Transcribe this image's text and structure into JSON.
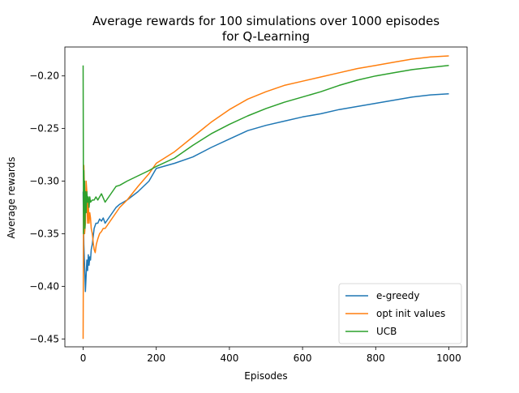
{
  "chart_data": {
    "type": "line",
    "title_line1": "Average rewards for 100 simulations over 1000 episodes",
    "title_line2": "for Q-Learning",
    "xlabel": "Episodes",
    "ylabel": "Average rewards",
    "xlim": [
      -50,
      1050
    ],
    "ylim": [
      -0.4575,
      -0.1725
    ],
    "xticks": [
      0,
      200,
      400,
      600,
      800,
      1000
    ],
    "xtick_labels": [
      "0",
      "200",
      "400",
      "600",
      "800",
      "1000"
    ],
    "yticks": [
      -0.45,
      -0.4,
      -0.35,
      -0.3,
      -0.25,
      -0.2
    ],
    "ytick_labels": [
      "−0.45",
      "−0.40",
      "−0.35",
      "−0.30",
      "−0.25",
      "−0.20"
    ],
    "grid": false,
    "legend_position": "lower-right",
    "series": [
      {
        "name": "e-greedy",
        "color": "#1f77b4",
        "points": [
          [
            0,
            -0.31
          ],
          [
            2,
            -0.36
          ],
          [
            4,
            -0.38
          ],
          [
            6,
            -0.405
          ],
          [
            8,
            -0.39
          ],
          [
            10,
            -0.375
          ],
          [
            12,
            -0.385
          ],
          [
            14,
            -0.37
          ],
          [
            16,
            -0.38
          ],
          [
            18,
            -0.372
          ],
          [
            20,
            -0.375
          ],
          [
            22,
            -0.365
          ],
          [
            25,
            -0.36
          ],
          [
            30,
            -0.345
          ],
          [
            35,
            -0.34
          ],
          [
            40,
            -0.34
          ],
          [
            45,
            -0.336
          ],
          [
            50,
            -0.338
          ],
          [
            55,
            -0.335
          ],
          [
            60,
            -0.34
          ],
          [
            70,
            -0.335
          ],
          [
            80,
            -0.33
          ],
          [
            90,
            -0.325
          ],
          [
            100,
            -0.322
          ],
          [
            120,
            -0.318
          ],
          [
            150,
            -0.31
          ],
          [
            180,
            -0.3
          ],
          [
            200,
            -0.288
          ],
          [
            250,
            -0.283
          ],
          [
            300,
            -0.277
          ],
          [
            350,
            -0.268
          ],
          [
            400,
            -0.26
          ],
          [
            450,
            -0.252
          ],
          [
            500,
            -0.247
          ],
          [
            550,
            -0.243
          ],
          [
            600,
            -0.239
          ],
          [
            650,
            -0.236
          ],
          [
            700,
            -0.232
          ],
          [
            750,
            -0.229
          ],
          [
            800,
            -0.226
          ],
          [
            850,
            -0.223
          ],
          [
            900,
            -0.22
          ],
          [
            950,
            -0.218
          ],
          [
            1000,
            -0.217
          ]
        ]
      },
      {
        "name": "opt init values",
        "color": "#ff7f0e",
        "points": [
          [
            0,
            -0.45
          ],
          [
            1,
            -0.33
          ],
          [
            2,
            -0.285
          ],
          [
            3,
            -0.3
          ],
          [
            4,
            -0.35
          ],
          [
            6,
            -0.34
          ],
          [
            8,
            -0.3
          ],
          [
            10,
            -0.31
          ],
          [
            12,
            -0.34
          ],
          [
            14,
            -0.32
          ],
          [
            16,
            -0.34
          ],
          [
            18,
            -0.33
          ],
          [
            20,
            -0.335
          ],
          [
            22,
            -0.345
          ],
          [
            25,
            -0.35
          ],
          [
            28,
            -0.36
          ],
          [
            30,
            -0.365
          ],
          [
            33,
            -0.368
          ],
          [
            36,
            -0.36
          ],
          [
            40,
            -0.355
          ],
          [
            45,
            -0.35
          ],
          [
            50,
            -0.348
          ],
          [
            55,
            -0.345
          ],
          [
            60,
            -0.345
          ],
          [
            70,
            -0.34
          ],
          [
            80,
            -0.335
          ],
          [
            90,
            -0.33
          ],
          [
            100,
            -0.325
          ],
          [
            120,
            -0.318
          ],
          [
            150,
            -0.305
          ],
          [
            180,
            -0.293
          ],
          [
            200,
            -0.283
          ],
          [
            250,
            -0.272
          ],
          [
            300,
            -0.258
          ],
          [
            350,
            -0.244
          ],
          [
            400,
            -0.232
          ],
          [
            450,
            -0.222
          ],
          [
            500,
            -0.215
          ],
          [
            550,
            -0.209
          ],
          [
            600,
            -0.205
          ],
          [
            650,
            -0.201
          ],
          [
            700,
            -0.197
          ],
          [
            750,
            -0.193
          ],
          [
            800,
            -0.19
          ],
          [
            850,
            -0.187
          ],
          [
            900,
            -0.184
          ],
          [
            950,
            -0.182
          ],
          [
            1000,
            -0.181
          ]
        ]
      },
      {
        "name": "UCB",
        "color": "#2ca02c",
        "points": [
          [
            0,
            -0.19
          ],
          [
            1,
            -0.35
          ],
          [
            2,
            -0.29
          ],
          [
            3,
            -0.33
          ],
          [
            4,
            -0.3
          ],
          [
            5,
            -0.345
          ],
          [
            6,
            -0.31
          ],
          [
            8,
            -0.33
          ],
          [
            10,
            -0.31
          ],
          [
            12,
            -0.32
          ],
          [
            14,
            -0.315
          ],
          [
            16,
            -0.325
          ],
          [
            18,
            -0.315
          ],
          [
            20,
            -0.32
          ],
          [
            25,
            -0.318
          ],
          [
            30,
            -0.318
          ],
          [
            35,
            -0.315
          ],
          [
            40,
            -0.318
          ],
          [
            45,
            -0.315
          ],
          [
            50,
            -0.312
          ],
          [
            60,
            -0.32
          ],
          [
            70,
            -0.315
          ],
          [
            80,
            -0.31
          ],
          [
            90,
            -0.305
          ],
          [
            100,
            -0.304
          ],
          [
            120,
            -0.3
          ],
          [
            150,
            -0.295
          ],
          [
            180,
            -0.29
          ],
          [
            200,
            -0.286
          ],
          [
            250,
            -0.278
          ],
          [
            300,
            -0.266
          ],
          [
            350,
            -0.255
          ],
          [
            400,
            -0.246
          ],
          [
            450,
            -0.238
          ],
          [
            500,
            -0.231
          ],
          [
            550,
            -0.225
          ],
          [
            600,
            -0.22
          ],
          [
            650,
            -0.215
          ],
          [
            700,
            -0.209
          ],
          [
            750,
            -0.204
          ],
          [
            800,
            -0.2
          ],
          [
            850,
            -0.197
          ],
          [
            900,
            -0.194
          ],
          [
            950,
            -0.192
          ],
          [
            1000,
            -0.19
          ]
        ]
      }
    ]
  }
}
